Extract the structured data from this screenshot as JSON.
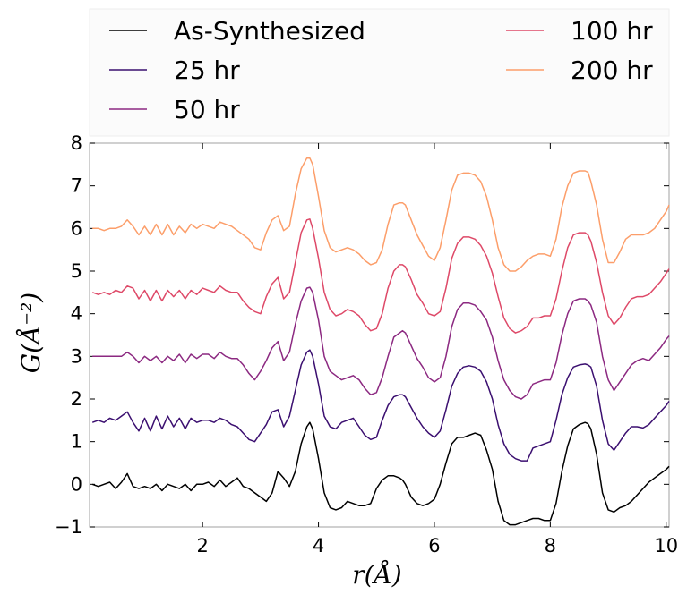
{
  "chart_data": {
    "type": "line",
    "xlabel": "r(Å)",
    "ylabel": "G(Å⁻²)",
    "xlim": [
      0.05,
      10.05
    ],
    "ylim": [
      -1,
      8
    ],
    "xticks": [
      2,
      4,
      6,
      8,
      10
    ],
    "yticks": [
      -1,
      0,
      1,
      2,
      3,
      4,
      5,
      6,
      7,
      8
    ],
    "grid": false,
    "legend_placement": "top, above plot, two columns",
    "x": [
      0.1,
      0.2,
      0.3,
      0.4,
      0.5,
      0.6,
      0.7,
      0.8,
      0.9,
      1.0,
      1.1,
      1.2,
      1.3,
      1.4,
      1.5,
      1.6,
      1.7,
      1.8,
      1.9,
      2.0,
      2.1,
      2.2,
      2.3,
      2.4,
      2.5,
      2.6,
      2.7,
      2.8,
      2.9,
      3.0,
      3.1,
      3.2,
      3.3,
      3.4,
      3.5,
      3.6,
      3.7,
      3.8,
      3.85,
      3.9,
      4.0,
      4.1,
      4.2,
      4.3,
      4.4,
      4.5,
      4.6,
      4.7,
      4.8,
      4.9,
      5.0,
      5.1,
      5.2,
      5.3,
      5.4,
      5.45,
      5.5,
      5.6,
      5.7,
      5.8,
      5.9,
      6.0,
      6.1,
      6.2,
      6.3,
      6.4,
      6.5,
      6.6,
      6.7,
      6.8,
      6.9,
      7.0,
      7.1,
      7.2,
      7.3,
      7.4,
      7.5,
      7.6,
      7.7,
      7.8,
      7.9,
      8.0,
      8.1,
      8.2,
      8.3,
      8.4,
      8.5,
      8.6,
      8.65,
      8.7,
      8.8,
      8.9,
      9.0,
      9.1,
      9.2,
      9.3,
      9.4,
      9.5,
      9.6,
      9.7,
      9.8,
      9.9,
      10.0,
      10.05
    ],
    "series": [
      {
        "name": "As-Synthesized",
        "color": "#000000",
        "values": [
          0.0,
          -0.05,
          0.0,
          0.05,
          -0.1,
          0.05,
          0.25,
          -0.05,
          -0.1,
          -0.05,
          -0.1,
          0.0,
          -0.15,
          0.0,
          -0.05,
          -0.1,
          0.0,
          -0.15,
          0.0,
          0.0,
          0.05,
          -0.05,
          0.1,
          -0.05,
          0.05,
          0.15,
          -0.05,
          -0.1,
          -0.2,
          -0.3,
          -0.4,
          -0.2,
          0.3,
          0.15,
          -0.05,
          0.3,
          0.95,
          1.35,
          1.45,
          1.3,
          0.6,
          -0.2,
          -0.55,
          -0.6,
          -0.55,
          -0.4,
          -0.45,
          -0.5,
          -0.5,
          -0.45,
          -0.1,
          0.1,
          0.2,
          0.2,
          0.15,
          0.1,
          0.0,
          -0.3,
          -0.45,
          -0.5,
          -0.45,
          -0.35,
          0.0,
          0.5,
          0.95,
          1.1,
          1.1,
          1.15,
          1.2,
          1.15,
          0.8,
          0.35,
          -0.4,
          -0.85,
          -0.95,
          -0.95,
          -0.9,
          -0.85,
          -0.8,
          -0.8,
          -0.85,
          -0.85,
          -0.45,
          0.3,
          0.9,
          1.3,
          1.4,
          1.45,
          1.42,
          1.3,
          0.7,
          -0.2,
          -0.6,
          -0.65,
          -0.55,
          -0.5,
          -0.4,
          -0.25,
          -0.1,
          0.05,
          0.15,
          0.25,
          0.35,
          0.42
        ]
      },
      {
        "name": "25 hr",
        "color": "#3b0f70",
        "values": [
          1.45,
          1.5,
          1.45,
          1.55,
          1.5,
          1.6,
          1.7,
          1.45,
          1.25,
          1.55,
          1.25,
          1.6,
          1.3,
          1.6,
          1.35,
          1.55,
          1.3,
          1.55,
          1.45,
          1.5,
          1.5,
          1.45,
          1.55,
          1.5,
          1.4,
          1.35,
          1.2,
          1.05,
          1.0,
          1.2,
          1.4,
          1.7,
          1.75,
          1.35,
          1.6,
          2.2,
          2.8,
          3.1,
          3.15,
          3.0,
          2.35,
          1.6,
          1.35,
          1.3,
          1.45,
          1.5,
          1.55,
          1.35,
          1.15,
          1.05,
          1.1,
          1.5,
          1.85,
          2.05,
          2.1,
          2.1,
          2.05,
          1.8,
          1.55,
          1.35,
          1.2,
          1.1,
          1.25,
          1.75,
          2.3,
          2.6,
          2.75,
          2.78,
          2.75,
          2.65,
          2.4,
          2.0,
          1.4,
          0.95,
          0.7,
          0.6,
          0.55,
          0.55,
          0.85,
          0.9,
          0.95,
          1.0,
          1.5,
          2.1,
          2.5,
          2.75,
          2.8,
          2.82,
          2.8,
          2.75,
          2.3,
          1.5,
          0.95,
          0.8,
          1.0,
          1.2,
          1.35,
          1.35,
          1.32,
          1.4,
          1.55,
          1.7,
          1.85,
          1.95
        ]
      },
      {
        "name": "50 hr",
        "color": "#8c2981",
        "values": [
          3.0,
          3.0,
          3.0,
          3.0,
          3.0,
          3.0,
          3.1,
          3.0,
          2.85,
          3.0,
          2.9,
          3.0,
          2.85,
          3.0,
          2.9,
          3.05,
          2.85,
          3.05,
          2.95,
          3.05,
          3.05,
          2.95,
          3.1,
          3.0,
          2.95,
          2.95,
          2.8,
          2.6,
          2.45,
          2.65,
          2.9,
          3.2,
          3.35,
          2.9,
          3.1,
          3.75,
          4.3,
          4.6,
          4.62,
          4.5,
          3.85,
          3.0,
          2.65,
          2.55,
          2.45,
          2.5,
          2.55,
          2.45,
          2.25,
          2.1,
          2.15,
          2.5,
          3.0,
          3.45,
          3.55,
          3.6,
          3.55,
          3.25,
          2.95,
          2.75,
          2.5,
          2.4,
          2.5,
          3.0,
          3.7,
          4.1,
          4.25,
          4.25,
          4.2,
          4.05,
          3.85,
          3.45,
          2.9,
          2.45,
          2.2,
          2.05,
          2.0,
          2.1,
          2.35,
          2.4,
          2.45,
          2.45,
          2.85,
          3.5,
          4.0,
          4.3,
          4.35,
          4.35,
          4.3,
          4.2,
          3.8,
          3.0,
          2.45,
          2.2,
          2.4,
          2.6,
          2.8,
          2.9,
          2.95,
          2.9,
          3.05,
          3.2,
          3.4,
          3.48
        ]
      },
      {
        "name": "100 hr",
        "color": "#de4968",
        "values": [
          4.5,
          4.45,
          4.5,
          4.45,
          4.55,
          4.5,
          4.65,
          4.6,
          4.35,
          4.55,
          4.3,
          4.55,
          4.3,
          4.55,
          4.4,
          4.55,
          4.35,
          4.55,
          4.45,
          4.6,
          4.55,
          4.5,
          4.65,
          4.55,
          4.5,
          4.5,
          4.3,
          4.15,
          4.05,
          4.0,
          4.4,
          4.7,
          4.85,
          4.35,
          4.5,
          5.2,
          5.9,
          6.2,
          6.22,
          6.0,
          5.3,
          4.5,
          4.1,
          3.95,
          4.0,
          4.1,
          4.05,
          3.95,
          3.75,
          3.6,
          3.65,
          4.0,
          4.6,
          5.0,
          5.15,
          5.15,
          5.1,
          4.8,
          4.45,
          4.25,
          4.0,
          3.95,
          4.05,
          4.6,
          5.3,
          5.65,
          5.8,
          5.8,
          5.75,
          5.6,
          5.35,
          4.95,
          4.4,
          3.9,
          3.65,
          3.55,
          3.6,
          3.7,
          3.9,
          3.9,
          3.95,
          3.95,
          4.35,
          5.0,
          5.55,
          5.85,
          5.9,
          5.9,
          5.85,
          5.7,
          5.2,
          4.5,
          3.95,
          3.75,
          3.9,
          4.15,
          4.35,
          4.4,
          4.4,
          4.45,
          4.6,
          4.75,
          4.95,
          5.05
        ]
      },
      {
        "name": "200 hr",
        "color": "#fc9e6a",
        "values": [
          6.0,
          6.0,
          5.95,
          6.0,
          6.0,
          6.05,
          6.2,
          6.05,
          5.85,
          6.05,
          5.85,
          6.1,
          5.85,
          6.1,
          5.85,
          6.05,
          5.9,
          6.1,
          6.0,
          6.1,
          6.05,
          6.0,
          6.15,
          6.1,
          6.05,
          5.95,
          5.85,
          5.75,
          5.55,
          5.5,
          5.9,
          6.2,
          6.3,
          5.95,
          6.05,
          6.8,
          7.4,
          7.65,
          7.65,
          7.5,
          6.75,
          5.95,
          5.55,
          5.45,
          5.5,
          5.55,
          5.5,
          5.4,
          5.25,
          5.15,
          5.2,
          5.5,
          6.1,
          6.55,
          6.6,
          6.6,
          6.55,
          6.2,
          5.85,
          5.6,
          5.35,
          5.25,
          5.55,
          6.2,
          6.9,
          7.25,
          7.3,
          7.3,
          7.25,
          7.1,
          6.75,
          6.2,
          5.55,
          5.15,
          5.0,
          5.0,
          5.1,
          5.25,
          5.35,
          5.4,
          5.4,
          5.35,
          5.75,
          6.5,
          7.0,
          7.3,
          7.35,
          7.35,
          7.32,
          7.1,
          6.55,
          5.75,
          5.2,
          5.2,
          5.45,
          5.75,
          5.85,
          5.85,
          5.85,
          5.9,
          6.0,
          6.2,
          6.4,
          6.55
        ]
      }
    ]
  }
}
